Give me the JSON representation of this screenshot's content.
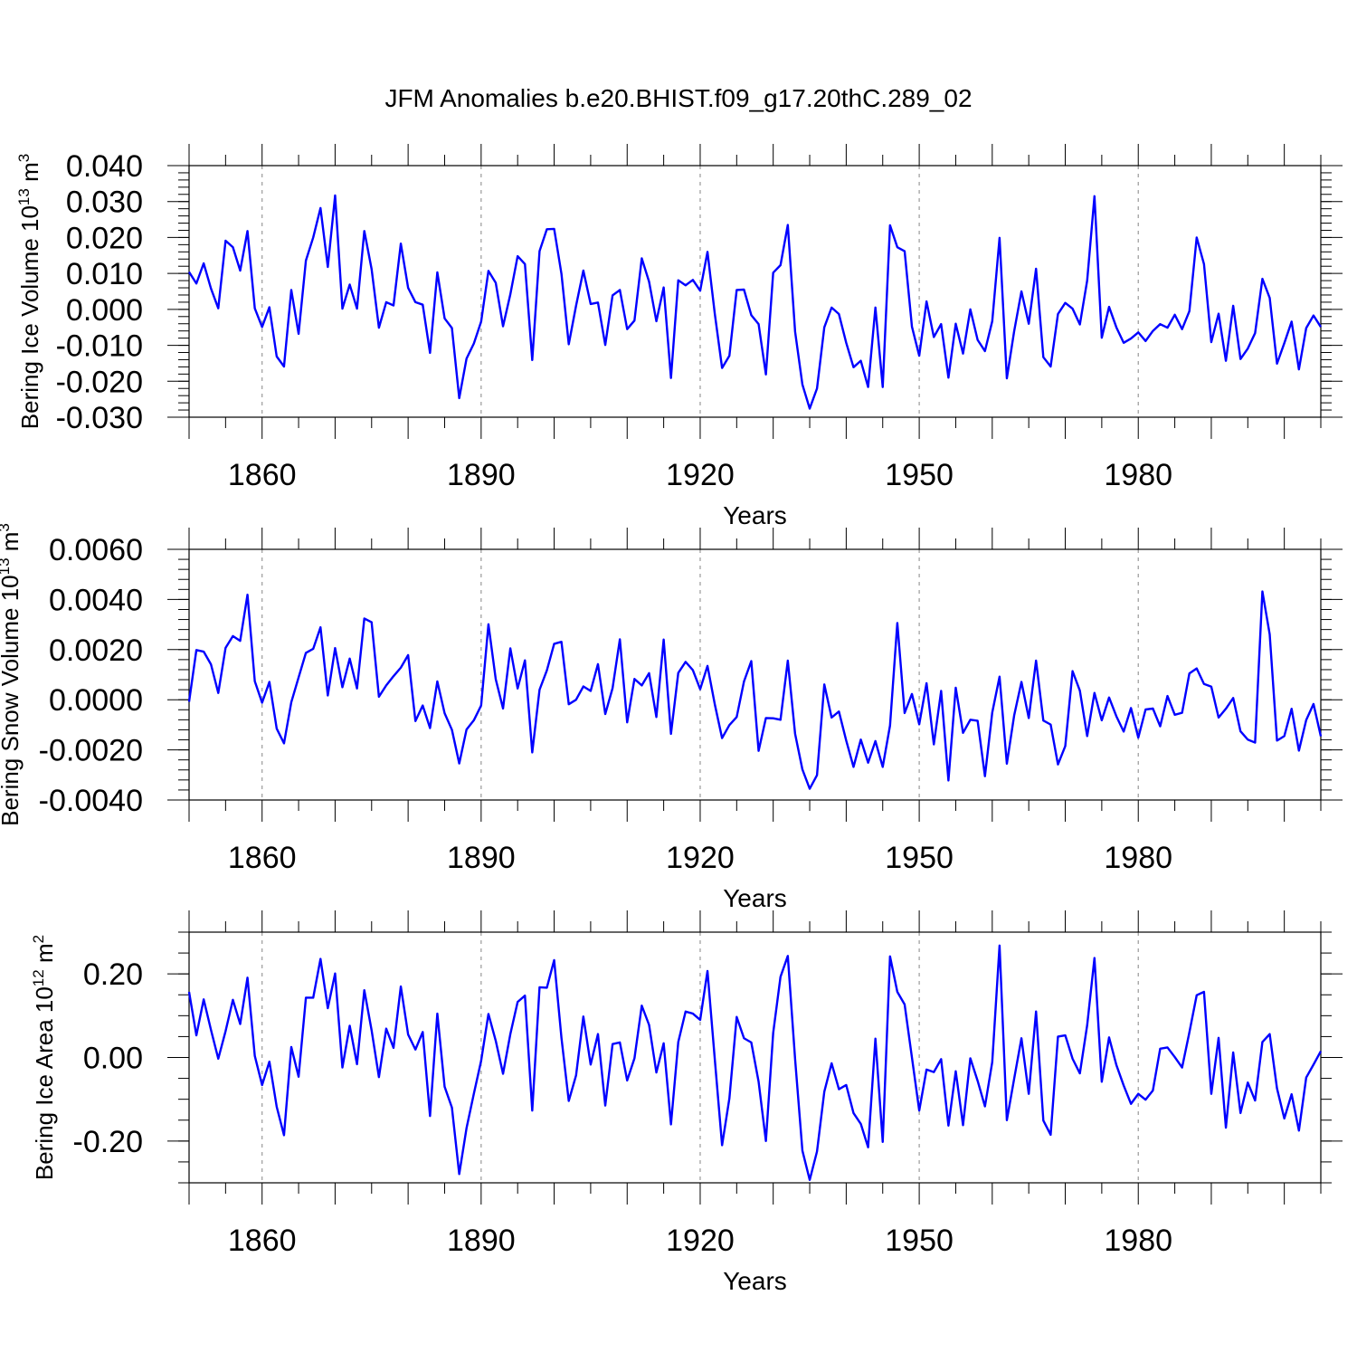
{
  "title": "JFM Anomalies b.e20.BHIST.f09_g17.20thC.289_02",
  "colors": {
    "line": "#0000ff",
    "axes": "#000000",
    "grid": "#999999"
  },
  "chart_data": [
    {
      "type": "line",
      "ylabel": "Bering Ice Volume 10",
      "ylabel_exp": "13",
      "ylabel_unit": " m",
      "ylabel_unit_exp": "3",
      "xlabel": "Years",
      "xlim": [
        1850,
        2005
      ],
      "ylim": [
        -0.03,
        0.04
      ],
      "x_ticks": [
        1860,
        1890,
        1920,
        1950,
        1980
      ],
      "x_tick_labels": [
        "1860",
        "1890",
        "1920",
        "1950",
        "1980"
      ],
      "y_ticks": [
        -0.03,
        -0.02,
        -0.01,
        0.0,
        0.01,
        0.02,
        0.03,
        0.04
      ],
      "y_tick_labels": [
        "-0.030",
        "-0.020",
        "-0.010",
        "0.000",
        "0.010",
        "0.020",
        "0.030",
        "0.040"
      ],
      "y_minor_step": 0.002,
      "grid_x": [
        1860,
        1890,
        1920,
        1950,
        1980
      ],
      "x_start": 1850,
      "values": [
        0.0104,
        0.0072,
        0.0128,
        0.0058,
        0.0003,
        0.0191,
        0.0173,
        0.0108,
        0.0218,
        0.0003,
        -0.0049,
        0.0006,
        -0.0131,
        -0.0159,
        0.0054,
        -0.0068,
        0.0136,
        0.02,
        0.0282,
        0.0118,
        0.0317,
        0.0002,
        0.0069,
        0.0002,
        0.0218,
        0.0112,
        -0.0051,
        0.002,
        0.0011,
        0.0183,
        0.006,
        0.002,
        0.0013,
        -0.0121,
        0.0103,
        -0.0025,
        -0.0052,
        -0.0247,
        -0.0137,
        -0.0095,
        -0.0034,
        0.0107,
        0.0074,
        -0.0047,
        0.0042,
        0.0148,
        0.0126,
        -0.0141,
        0.0162,
        0.0223,
        0.0224,
        0.0099,
        -0.0097,
        0.001,
        0.0108,
        0.0015,
        0.0019,
        -0.0099,
        0.0039,
        0.0054,
        -0.0055,
        -0.0031,
        0.0142,
        0.0077,
        -0.0033,
        0.0061,
        -0.0191,
        0.0081,
        0.0067,
        0.0082,
        0.0052,
        0.016,
        -0.0012,
        -0.0163,
        -0.0129,
        0.0054,
        0.0055,
        -0.0016,
        -0.0041,
        -0.0181,
        0.0102,
        0.0123,
        0.0235,
        -0.0062,
        -0.0209,
        -0.0276,
        -0.022,
        -0.005,
        0.0005,
        -0.0013,
        -0.0093,
        -0.0161,
        -0.0143,
        -0.0216,
        0.0005,
        -0.0216,
        0.0234,
        0.0173,
        0.0162,
        -0.0048,
        -0.0129,
        0.0022,
        -0.0077,
        -0.0041,
        -0.019,
        -0.004,
        -0.0123,
        0.0,
        -0.0085,
        -0.0116,
        -0.0033,
        0.0199,
        -0.0192,
        -0.0061,
        0.005,
        -0.004,
        0.0113,
        -0.0133,
        -0.0159,
        -0.0013,
        0.0018,
        0.0002,
        -0.0042,
        0.008,
        0.0315,
        -0.0079,
        0.0007,
        -0.005,
        -0.0093,
        -0.0081,
        -0.0064,
        -0.0088,
        -0.006,
        -0.0041,
        -0.0051,
        -0.0015,
        -0.0055,
        -0.0005,
        0.02,
        0.0126,
        -0.0091,
        -0.0012,
        -0.0143,
        0.001,
        -0.0138,
        -0.0109,
        -0.0066,
        0.0085,
        0.0032,
        -0.0151,
        -0.0094,
        -0.0034,
        -0.0167,
        -0.0052,
        -0.0017,
        -0.0049
      ]
    },
    {
      "type": "line",
      "ylabel": "Bering Snow Volume 10",
      "ylabel_exp": "13",
      "ylabel_unit": " m",
      "ylabel_unit_exp": "3",
      "xlabel": "Years",
      "xlim": [
        1850,
        2005
      ],
      "ylim": [
        -0.004,
        0.006
      ],
      "x_ticks": [
        1860,
        1890,
        1920,
        1950,
        1980
      ],
      "x_tick_labels": [
        "1860",
        "1890",
        "1920",
        "1950",
        "1980"
      ],
      "y_ticks": [
        -0.004,
        -0.002,
        0.0,
        0.002,
        0.004,
        0.006
      ],
      "y_tick_labels": [
        "-0.0040",
        "-0.0020",
        "0.0000",
        "0.0020",
        "0.0040",
        "0.0060"
      ],
      "y_minor_step": 0.0004,
      "grid_x": [
        1860,
        1890,
        1920,
        1950,
        1980
      ],
      "x_start": 1850,
      "values": [
        -8e-05,
        0.00198,
        0.00192,
        0.00141,
        0.00027,
        0.00207,
        0.00254,
        0.00235,
        0.00419,
        0.00074,
        -0.00012,
        0.00071,
        -0.00115,
        -0.00174,
        -0.0001,
        0.00089,
        0.00187,
        0.00203,
        0.00289,
        0.00017,
        0.00206,
        0.0005,
        0.00164,
        0.00045,
        0.00324,
        0.00309,
        0.00012,
        0.00057,
        0.00094,
        0.00128,
        0.00178,
        -0.00085,
        -0.00023,
        -0.00113,
        0.00073,
        -0.00054,
        -0.0012,
        -0.00254,
        -0.00119,
        -0.00082,
        -0.00023,
        0.00301,
        0.00082,
        -0.00035,
        0.00205,
        0.00045,
        0.00157,
        -0.0021,
        0.0004,
        0.00117,
        0.00223,
        0.00231,
        -0.00018,
        0.0,
        0.00053,
        0.00035,
        0.00142,
        -0.00057,
        0.00046,
        0.00241,
        -0.0009,
        0.00083,
        0.00057,
        0.00106,
        -0.00069,
        0.0024,
        -0.00136,
        0.00107,
        0.00151,
        0.00118,
        0.00042,
        0.00135,
        -0.00018,
        -0.00153,
        -0.00101,
        -0.00069,
        0.00073,
        0.00154,
        -0.00204,
        -0.00073,
        -0.00074,
        -0.0008,
        0.00156,
        -0.00136,
        -0.00278,
        -0.00355,
        -0.00301,
        0.00061,
        -0.00071,
        -0.00047,
        -0.00163,
        -0.00268,
        -0.00159,
        -0.00251,
        -0.00165,
        -0.00268,
        -0.00103,
        0.00306,
        -0.00053,
        0.00023,
        -0.00098,
        0.00066,
        -0.00178,
        0.00035,
        -0.00322,
        0.00048,
        -0.00132,
        -0.0008,
        -0.00084,
        -0.00305,
        -0.00051,
        0.00092,
        -0.00255,
        -0.00063,
        0.00071,
        -0.00073,
        0.00156,
        -0.00083,
        -0.00099,
        -0.00258,
        -0.00185,
        0.00114,
        0.00036,
        -0.00145,
        0.00027,
        -0.00082,
        9e-05,
        -0.00066,
        -0.00127,
        -0.00033,
        -0.00151,
        -0.00039,
        -0.00035,
        -0.00106,
        0.00015,
        -0.0006,
        -0.00052,
        0.00105,
        0.00125,
        0.00063,
        0.00052,
        -0.00071,
        -0.00036,
        7e-05,
        -0.00126,
        -0.00159,
        -0.00171,
        0.00432,
        0.00261,
        -0.00163,
        -0.00145,
        -0.00036,
        -0.00203,
        -0.00081,
        -0.00017,
        -0.00146
      ]
    },
    {
      "type": "line",
      "ylabel": "Bering Ice Area 10",
      "ylabel_exp": "12",
      "ylabel_unit": " m",
      "ylabel_unit_exp": "2",
      "xlabel": "Years",
      "xlim": [
        1850,
        2005
      ],
      "ylim": [
        -0.3,
        0.3
      ],
      "x_ticks": [
        1860,
        1890,
        1920,
        1950,
        1980
      ],
      "x_tick_labels": [
        "1860",
        "1890",
        "1920",
        "1950",
        "1980"
      ],
      "y_ticks": [
        -0.2,
        0.0,
        0.2
      ],
      "y_tick_labels": [
        "-0.20",
        "0.00",
        "0.20"
      ],
      "y_minor_step": 0.05,
      "grid_x": [
        1860,
        1890,
        1920,
        1950,
        1980
      ],
      "x_start": 1850,
      "values": [
        0.157,
        0.053,
        0.139,
        0.066,
        -0.003,
        0.063,
        0.138,
        0.08,
        0.191,
        0.004,
        -0.066,
        -0.01,
        -0.118,
        -0.186,
        0.025,
        -0.046,
        0.143,
        0.143,
        0.236,
        0.118,
        0.201,
        -0.024,
        0.076,
        -0.016,
        0.161,
        0.065,
        -0.047,
        0.069,
        0.023,
        0.17,
        0.055,
        0.019,
        0.061,
        -0.14,
        0.105,
        -0.07,
        -0.12,
        -0.279,
        -0.169,
        -0.087,
        -0.008,
        0.104,
        0.04,
        -0.039,
        0.056,
        0.133,
        0.148,
        -0.127,
        0.168,
        0.167,
        0.233,
        0.047,
        -0.104,
        -0.043,
        0.098,
        -0.017,
        0.056,
        -0.115,
        0.032,
        0.036,
        -0.055,
        -0.002,
        0.124,
        0.078,
        -0.036,
        0.034,
        -0.16,
        0.037,
        0.11,
        0.105,
        0.09,
        0.207,
        -0.004,
        -0.21,
        -0.098,
        0.097,
        0.046,
        0.036,
        -0.058,
        -0.2,
        0.059,
        0.193,
        0.243,
        -0.004,
        -0.223,
        -0.293,
        -0.225,
        -0.082,
        -0.014,
        -0.076,
        -0.066,
        -0.133,
        -0.159,
        -0.215,
        0.045,
        -0.202,
        0.242,
        0.157,
        0.127,
        0.0,
        -0.127,
        -0.029,
        -0.035,
        -0.004,
        -0.163,
        -0.033,
        -0.162,
        -0.002,
        -0.056,
        -0.117,
        -0.011,
        0.268,
        -0.15,
        -0.051,
        0.046,
        -0.087,
        0.11,
        -0.151,
        -0.185,
        0.05,
        0.053,
        -0.003,
        -0.038,
        0.077,
        0.238,
        -0.058,
        0.048,
        -0.018,
        -0.067,
        -0.111,
        -0.087,
        -0.101,
        -0.079,
        0.021,
        0.024,
        0.001,
        -0.024,
        0.06,
        0.149,
        0.157,
        -0.087,
        0.047,
        -0.168,
        0.012,
        -0.133,
        -0.06,
        -0.103,
        0.037,
        0.056,
        -0.074,
        -0.146,
        -0.088,
        -0.175,
        -0.048,
        -0.017,
        0.015
      ]
    }
  ]
}
